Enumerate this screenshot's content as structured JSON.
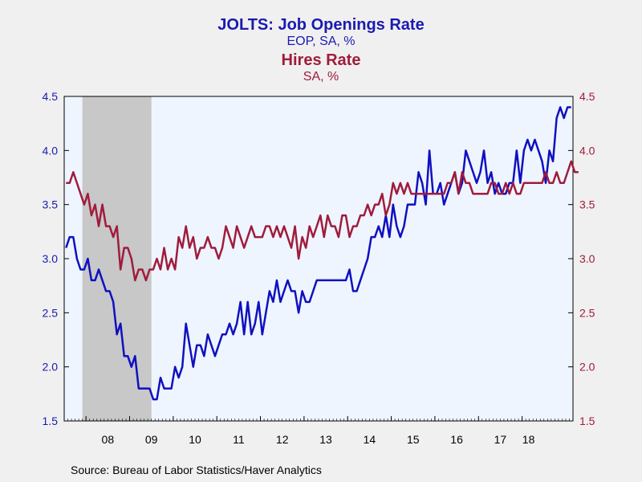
{
  "titles": {
    "series1_title": "JOLTS: Job Openings Rate",
    "series1_subtitle": "EOP, SA, %",
    "series2_title": "Hires Rate",
    "series2_subtitle": "SA, %"
  },
  "source": "Source:  Bureau of Labor Statistics/Haver Analytics",
  "colors": {
    "job_openings": "#1010c0",
    "hires": "#a01c3c",
    "plot_background": "#eef5ff",
    "recession_shade": "#c8c8c8"
  },
  "chart_data": {
    "type": "line",
    "x_unit": "month index from Jul 2007",
    "x_tick_labels": [
      "08",
      "09",
      "10",
      "11",
      "12",
      "13",
      "14",
      "15",
      "16",
      "17",
      "18"
    ],
    "ylim_left": [
      1.5,
      4.5
    ],
    "ylim_right": [
      1.5,
      4.5
    ],
    "y_ticks_left": [
      "1.5",
      "2.0",
      "2.5",
      "3.0",
      "3.5",
      "4.0",
      "4.5"
    ],
    "y_ticks_right": [
      "1.5",
      "2.0",
      "2.5",
      "3.0",
      "3.5",
      "4.0",
      "4.5"
    ],
    "recession": {
      "start": "2007-12",
      "end": "2009-06"
    },
    "grid": false,
    "series": [
      {
        "name": "JOLTS: Job Openings Rate",
        "axis": "left",
        "start": "2007-07",
        "values": [
          3.1,
          3.2,
          3.2,
          3.0,
          2.9,
          2.9,
          3.0,
          2.8,
          2.8,
          2.9,
          2.8,
          2.7,
          2.7,
          2.6,
          2.3,
          2.4,
          2.1,
          2.1,
          2.0,
          2.1,
          1.8,
          1.8,
          1.8,
          1.8,
          1.7,
          1.7,
          1.9,
          1.8,
          1.8,
          1.8,
          2.0,
          1.9,
          2.0,
          2.4,
          2.2,
          2.0,
          2.2,
          2.2,
          2.1,
          2.3,
          2.2,
          2.1,
          2.2,
          2.3,
          2.3,
          2.4,
          2.3,
          2.4,
          2.6,
          2.3,
          2.6,
          2.3,
          2.4,
          2.6,
          2.3,
          2.5,
          2.7,
          2.6,
          2.8,
          2.6,
          2.7,
          2.8,
          2.7,
          2.7,
          2.5,
          2.7,
          2.6,
          2.6,
          2.7,
          2.8,
          2.8,
          2.8,
          2.8,
          2.8,
          2.8,
          2.8,
          2.8,
          2.8,
          2.9,
          2.7,
          2.7,
          2.8,
          2.9,
          3.0,
          3.2,
          3.2,
          3.3,
          3.2,
          3.4,
          3.2,
          3.5,
          3.3,
          3.2,
          3.3,
          3.5,
          3.5,
          3.5,
          3.8,
          3.7,
          3.5,
          4.0,
          3.6,
          3.6,
          3.7,
          3.5,
          3.6,
          3.7,
          3.8,
          3.6,
          3.7,
          4.0,
          3.9,
          3.8,
          3.7,
          3.8,
          4.0,
          3.7,
          3.8,
          3.6,
          3.7,
          3.6,
          3.6,
          3.7,
          3.7,
          4.0,
          3.7,
          4.0,
          4.1,
          4.0,
          4.1,
          4.0,
          3.9,
          3.7,
          4.0,
          3.9,
          4.3,
          4.4,
          4.3,
          4.4,
          4.4
        ]
      },
      {
        "name": "Hires Rate",
        "axis": "right",
        "start": "2007-07",
        "values": [
          3.7,
          3.7,
          3.8,
          3.7,
          3.6,
          3.5,
          3.6,
          3.4,
          3.5,
          3.3,
          3.5,
          3.3,
          3.3,
          3.2,
          3.3,
          2.9,
          3.1,
          3.1,
          3.0,
          2.8,
          2.9,
          2.9,
          2.8,
          2.9,
          2.9,
          3.0,
          2.9,
          3.1,
          2.9,
          3.0,
          2.9,
          3.2,
          3.1,
          3.3,
          3.1,
          3.2,
          3.0,
          3.1,
          3.1,
          3.2,
          3.1,
          3.1,
          3.0,
          3.1,
          3.3,
          3.2,
          3.1,
          3.3,
          3.2,
          3.1,
          3.2,
          3.3,
          3.2,
          3.2,
          3.2,
          3.3,
          3.3,
          3.2,
          3.3,
          3.2,
          3.3,
          3.2,
          3.1,
          3.3,
          3.0,
          3.2,
          3.1,
          3.3,
          3.2,
          3.3,
          3.4,
          3.2,
          3.4,
          3.3,
          3.3,
          3.2,
          3.4,
          3.4,
          3.2,
          3.3,
          3.3,
          3.4,
          3.4,
          3.5,
          3.4,
          3.5,
          3.5,
          3.6,
          3.4,
          3.5,
          3.7,
          3.6,
          3.7,
          3.6,
          3.7,
          3.6,
          3.6,
          3.6,
          3.6,
          3.6,
          3.6,
          3.6,
          3.6,
          3.6,
          3.6,
          3.7,
          3.7,
          3.8,
          3.6,
          3.8,
          3.7,
          3.7,
          3.6,
          3.6,
          3.6,
          3.6,
          3.6,
          3.7,
          3.7,
          3.6,
          3.6,
          3.7,
          3.6,
          3.7,
          3.6,
          3.6,
          3.7,
          3.7,
          3.7,
          3.7,
          3.7,
          3.7,
          3.8,
          3.7,
          3.7,
          3.8,
          3.7,
          3.7,
          3.8,
          3.9,
          3.8,
          3.8
        ]
      }
    ]
  }
}
